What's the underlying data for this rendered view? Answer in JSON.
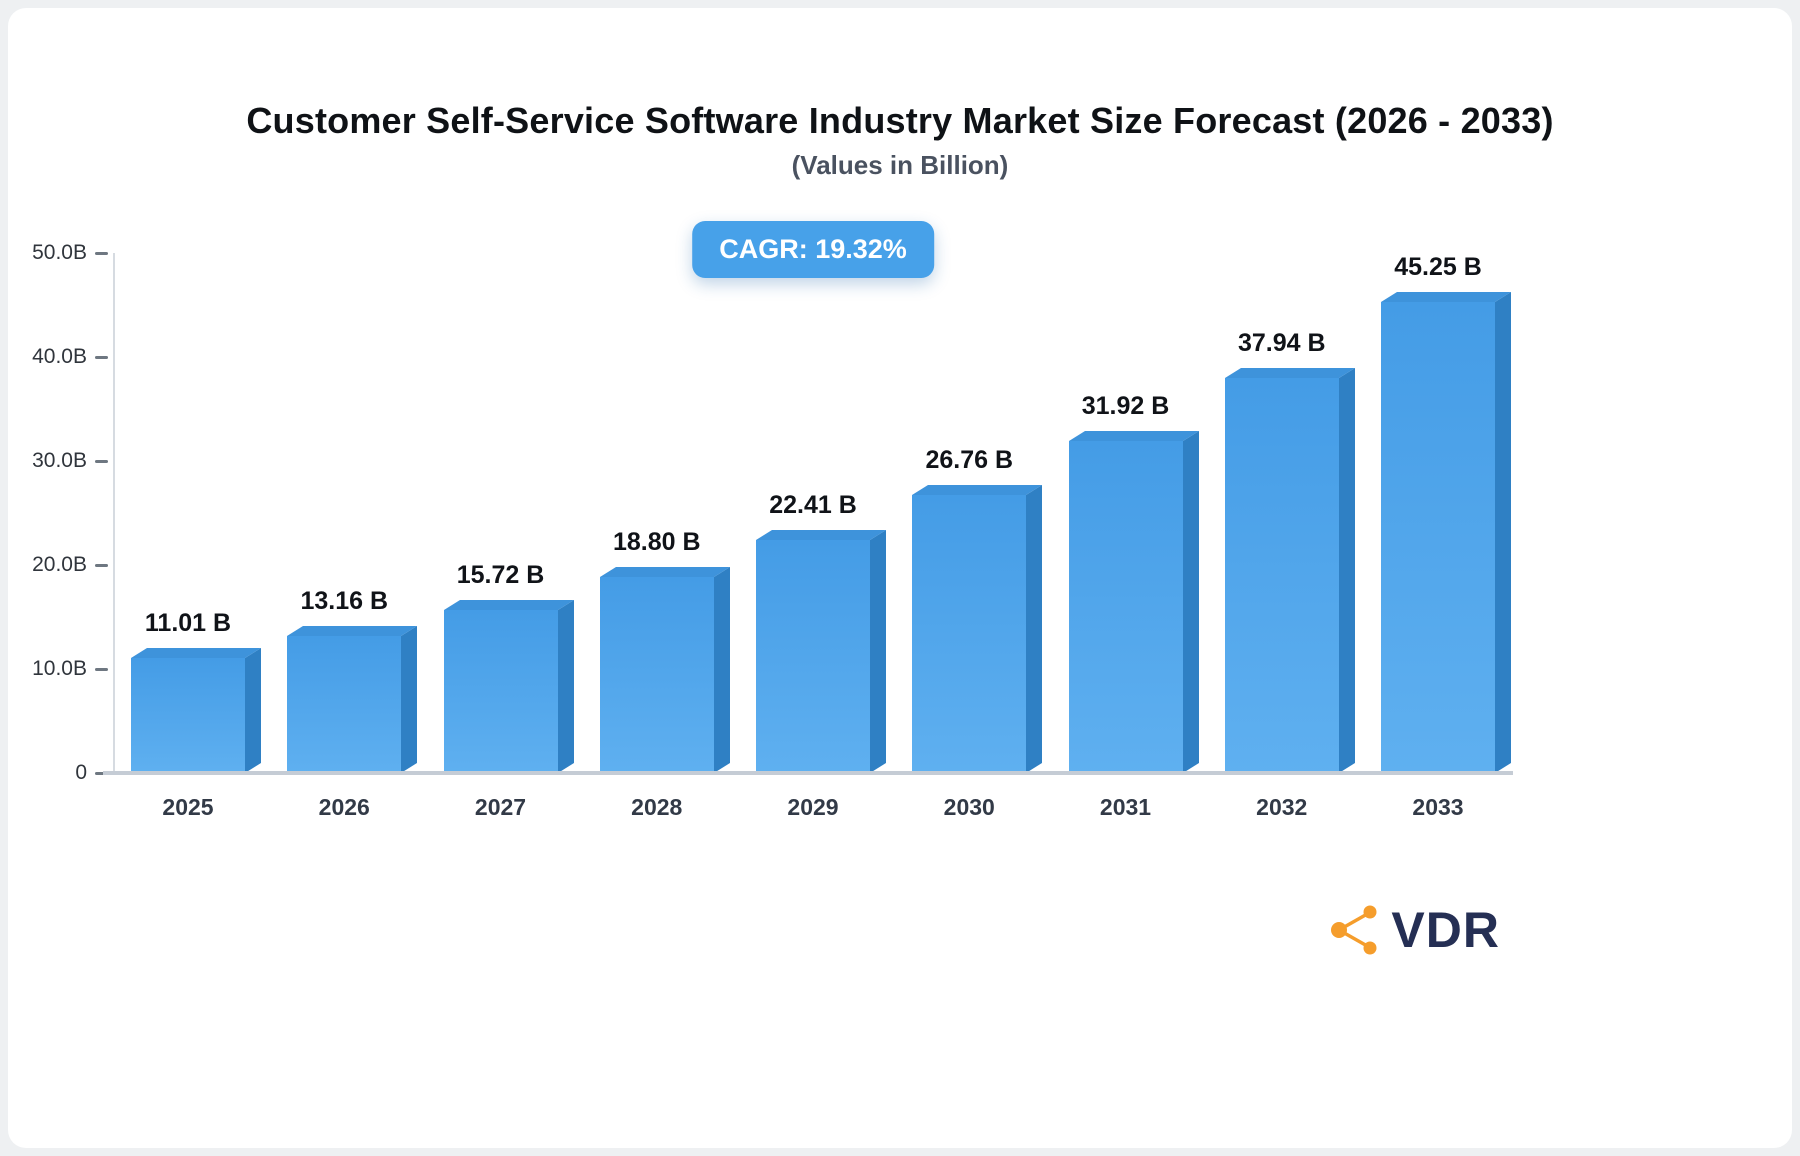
{
  "page": {
    "title": "Customer Self-Service Software Industry Market Size Forecast (2026 - 2033)",
    "subtitle": "(Values in Billion)"
  },
  "badge": {
    "text": "CAGR: 19.32%"
  },
  "logo": {
    "text": "VDR",
    "icon": "share-network-icon",
    "icon_color": "#f59d2c",
    "text_color": "#252f54"
  },
  "colors": {
    "bar_front_top": "#449ce6",
    "bar_front_bottom": "#5fb0f0",
    "bar_side": "#2f80c4",
    "bar_top": "#3e93db",
    "badge_bg": "#47a1e9",
    "axis": "#c5ccd5"
  },
  "chart_data": {
    "type": "bar",
    "title": "Customer Self-Service Software Industry Market Size Forecast (2026 - 2033)",
    "subtitle": "(Values in Billion)",
    "annotation": "CAGR: 19.32%",
    "categories": [
      "2025",
      "2026",
      "2027",
      "2028",
      "2029",
      "2030",
      "2031",
      "2032",
      "2033"
    ],
    "values": [
      11.01,
      13.16,
      15.72,
      18.8,
      22.41,
      26.76,
      31.92,
      37.94,
      45.25
    ],
    "value_labels": [
      "11.01 B",
      "13.16 B",
      "15.72 B",
      "18.80 B",
      "22.41 B",
      "26.76 B",
      "31.92 B",
      "37.94 B",
      "45.25 B"
    ],
    "xlabel": "",
    "ylabel": "",
    "ylim": [
      0,
      50
    ],
    "yticks": [
      {
        "value": 50,
        "label": "50.0B"
      },
      {
        "value": 40,
        "label": "40.0B"
      },
      {
        "value": 30,
        "label": "30.0B"
      },
      {
        "value": 20,
        "label": "20.0B"
      },
      {
        "value": 10,
        "label": "10.0B"
      },
      {
        "value": 0,
        "label": "0"
      }
    ],
    "grid": false,
    "legend": false
  }
}
